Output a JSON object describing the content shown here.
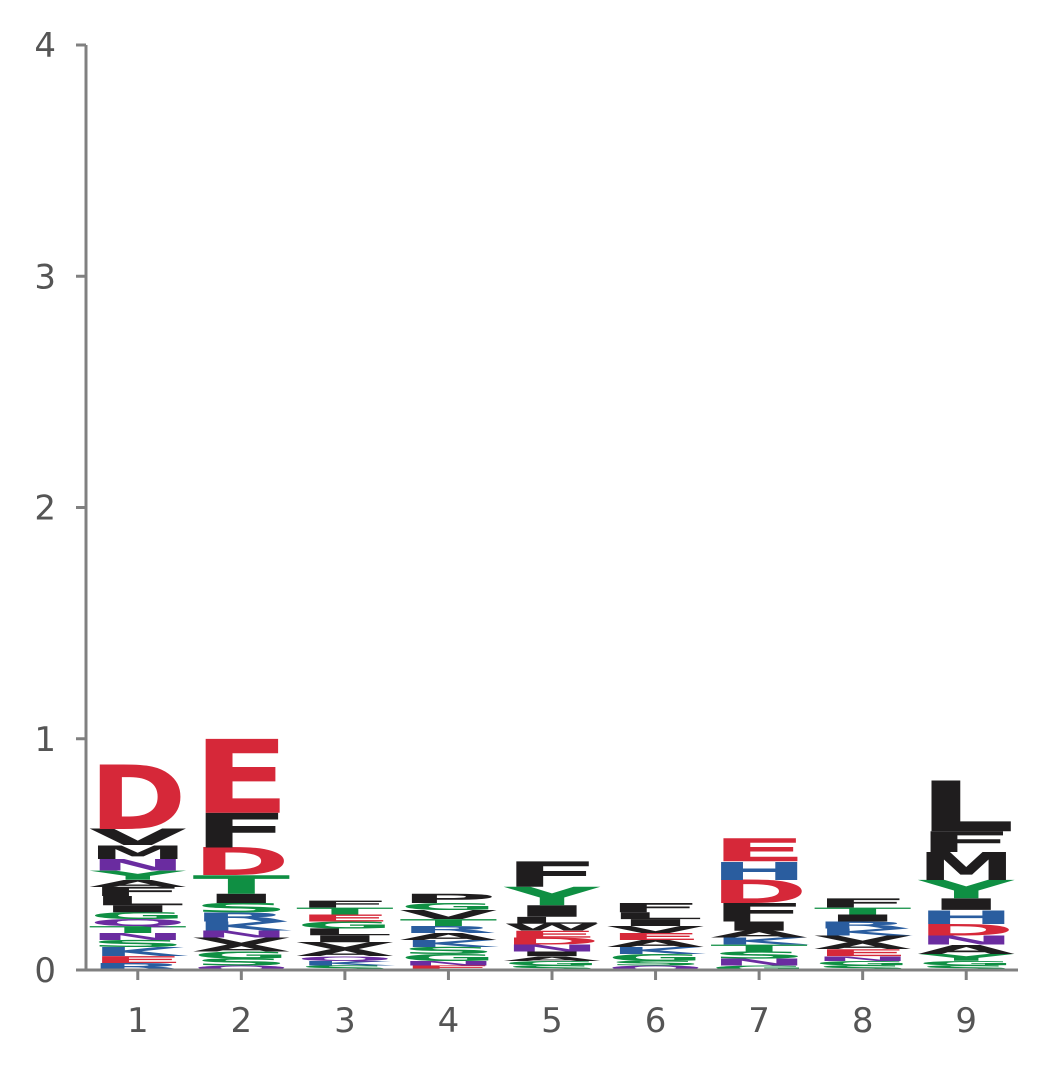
{
  "chart_data": {
    "type": "sequence-logo",
    "title": "",
    "xlabel": "",
    "ylabel": "",
    "ylim": [
      0,
      4
    ],
    "yticks": [
      "0",
      "1",
      "2",
      "3",
      "4"
    ],
    "categories": [
      "1",
      "2",
      "3",
      "4",
      "5",
      "6",
      "7",
      "8",
      "9"
    ],
    "grid": false,
    "colors": {
      "acidic": "#d62839",
      "basic": "#2a5d9f",
      "polar": "#0f8f43",
      "amide": "#6a2ca0",
      "hydrophobic": "#1f1d1e",
      "axis": "#808080"
    },
    "positions": [
      {
        "pos": "1",
        "letters": [
          {
            "aa": "R",
            "h": 0.03,
            "c": "basic"
          },
          {
            "aa": "E",
            "h": 0.03,
            "c": "acidic"
          },
          {
            "aa": "K",
            "h": 0.04,
            "c": "basic"
          },
          {
            "aa": "S",
            "h": 0.03,
            "c": "polar"
          },
          {
            "aa": "N",
            "h": 0.03,
            "c": "amide"
          },
          {
            "aa": "T",
            "h": 0.03,
            "c": "polar"
          },
          {
            "aa": "Q",
            "h": 0.03,
            "c": "amide"
          },
          {
            "aa": "G",
            "h": 0.03,
            "c": "polar"
          },
          {
            "aa": "I",
            "h": 0.03,
            "c": "hydrophobic"
          },
          {
            "aa": "L",
            "h": 0.04,
            "c": "hydrophobic"
          },
          {
            "aa": "F",
            "h": 0.04,
            "c": "hydrophobic"
          },
          {
            "aa": "A",
            "h": 0.03,
            "c": "hydrophobic"
          },
          {
            "aa": "Y",
            "h": 0.04,
            "c": "polar"
          },
          {
            "aa": "N",
            "h": 0.05,
            "c": "amide"
          },
          {
            "aa": "M",
            "h": 0.06,
            "c": "hydrophobic"
          },
          {
            "aa": "V",
            "h": 0.07,
            "c": "hydrophobic"
          },
          {
            "aa": "D",
            "h": 0.28,
            "c": "acidic"
          }
        ]
      },
      {
        "pos": "2",
        "letters": [
          {
            "aa": "Q",
            "h": 0.02,
            "c": "amide"
          },
          {
            "aa": "S",
            "h": 0.03,
            "c": "polar"
          },
          {
            "aa": "G",
            "h": 0.03,
            "c": "polar"
          },
          {
            "aa": "A",
            "h": 0.03,
            "c": "hydrophobic"
          },
          {
            "aa": "V",
            "h": 0.03,
            "c": "hydrophobic"
          },
          {
            "aa": "N",
            "h": 0.03,
            "c": "amide"
          },
          {
            "aa": "K",
            "h": 0.04,
            "c": "basic"
          },
          {
            "aa": "R",
            "h": 0.04,
            "c": "basic"
          },
          {
            "aa": "S",
            "h": 0.04,
            "c": "polar"
          },
          {
            "aa": "I",
            "h": 0.04,
            "c": "hydrophobic"
          },
          {
            "aa": "T",
            "h": 0.08,
            "c": "polar"
          },
          {
            "aa": "D",
            "h": 0.12,
            "c": "acidic"
          },
          {
            "aa": "F",
            "h": 0.15,
            "c": "hydrophobic"
          },
          {
            "aa": "E",
            "h": 0.32,
            "c": "acidic"
          }
        ]
      },
      {
        "pos": "3",
        "letters": [
          {
            "aa": "S",
            "h": 0.02,
            "c": "polar"
          },
          {
            "aa": "K",
            "h": 0.02,
            "c": "basic"
          },
          {
            "aa": "Q",
            "h": 0.02,
            "c": "amide"
          },
          {
            "aa": "A",
            "h": 0.03,
            "c": "hydrophobic"
          },
          {
            "aa": "V",
            "h": 0.03,
            "c": "hydrophobic"
          },
          {
            "aa": "I",
            "h": 0.03,
            "c": "hydrophobic"
          },
          {
            "aa": "L",
            "h": 0.03,
            "c": "hydrophobic"
          },
          {
            "aa": "G",
            "h": 0.03,
            "c": "polar"
          },
          {
            "aa": "E",
            "h": 0.03,
            "c": "acidic"
          },
          {
            "aa": "T",
            "h": 0.03,
            "c": "polar"
          },
          {
            "aa": "F",
            "h": 0.03,
            "c": "hydrophobic"
          }
        ]
      },
      {
        "pos": "4",
        "letters": [
          {
            "aa": "E",
            "h": 0.02,
            "c": "acidic"
          },
          {
            "aa": "N",
            "h": 0.02,
            "c": "amide"
          },
          {
            "aa": "G",
            "h": 0.03,
            "c": "polar"
          },
          {
            "aa": "S",
            "h": 0.03,
            "c": "polar"
          },
          {
            "aa": "K",
            "h": 0.03,
            "c": "basic"
          },
          {
            "aa": "A",
            "h": 0.03,
            "c": "hydrophobic"
          },
          {
            "aa": "R",
            "h": 0.03,
            "c": "basic"
          },
          {
            "aa": "T",
            "h": 0.03,
            "c": "polar"
          },
          {
            "aa": "V",
            "h": 0.04,
            "c": "hydrophobic"
          },
          {
            "aa": "G",
            "h": 0.03,
            "c": "polar"
          },
          {
            "aa": "P",
            "h": 0.04,
            "c": "hydrophobic"
          }
        ]
      },
      {
        "pos": "5",
        "letters": [
          {
            "aa": "S",
            "h": 0.02,
            "c": "polar"
          },
          {
            "aa": "G",
            "h": 0.02,
            "c": "polar"
          },
          {
            "aa": "A",
            "h": 0.02,
            "c": "hydrophobic"
          },
          {
            "aa": "I",
            "h": 0.02,
            "c": "hydrophobic"
          },
          {
            "aa": "N",
            "h": 0.03,
            "c": "amide"
          },
          {
            "aa": "D",
            "h": 0.03,
            "c": "acidic"
          },
          {
            "aa": "E",
            "h": 0.03,
            "c": "acidic"
          },
          {
            "aa": "W",
            "h": 0.03,
            "c": "hydrophobic"
          },
          {
            "aa": "L",
            "h": 0.03,
            "c": "hydrophobic"
          },
          {
            "aa": "I",
            "h": 0.05,
            "c": "hydrophobic"
          },
          {
            "aa": "Y",
            "h": 0.08,
            "c": "polar"
          },
          {
            "aa": "F",
            "h": 0.11,
            "c": "hydrophobic"
          }
        ]
      },
      {
        "pos": "6",
        "letters": [
          {
            "aa": "Q",
            "h": 0.02,
            "c": "amide"
          },
          {
            "aa": "S",
            "h": 0.02,
            "c": "polar"
          },
          {
            "aa": "G",
            "h": 0.03,
            "c": "polar"
          },
          {
            "aa": "K",
            "h": 0.03,
            "c": "basic"
          },
          {
            "aa": "A",
            "h": 0.03,
            "c": "hydrophobic"
          },
          {
            "aa": "E",
            "h": 0.03,
            "c": "acidic"
          },
          {
            "aa": "V",
            "h": 0.03,
            "c": "hydrophobic"
          },
          {
            "aa": "I",
            "h": 0.03,
            "c": "hydrophobic"
          },
          {
            "aa": "L",
            "h": 0.03,
            "c": "hydrophobic"
          },
          {
            "aa": "F",
            "h": 0.04,
            "c": "hydrophobic"
          }
        ]
      },
      {
        "pos": "7",
        "letters": [
          {
            "aa": "G",
            "h": 0.02,
            "c": "polar"
          },
          {
            "aa": "N",
            "h": 0.03,
            "c": "amide"
          },
          {
            "aa": "S",
            "h": 0.03,
            "c": "polar"
          },
          {
            "aa": "T",
            "h": 0.03,
            "c": "polar"
          },
          {
            "aa": "K",
            "h": 0.03,
            "c": "basic"
          },
          {
            "aa": "A",
            "h": 0.03,
            "c": "hydrophobic"
          },
          {
            "aa": "I",
            "h": 0.04,
            "c": "hydrophobic"
          },
          {
            "aa": "F",
            "h": 0.08,
            "c": "hydrophobic"
          },
          {
            "aa": "D",
            "h": 0.1,
            "c": "acidic"
          },
          {
            "aa": "H",
            "h": 0.08,
            "c": "basic"
          },
          {
            "aa": "E",
            "h": 0.1,
            "c": "acidic"
          }
        ]
      },
      {
        "pos": "8",
        "letters": [
          {
            "aa": "S",
            "h": 0.02,
            "c": "polar"
          },
          {
            "aa": "G",
            "h": 0.02,
            "c": "polar"
          },
          {
            "aa": "N",
            "h": 0.02,
            "c": "amide"
          },
          {
            "aa": "E",
            "h": 0.03,
            "c": "acidic"
          },
          {
            "aa": "A",
            "h": 0.03,
            "c": "hydrophobic"
          },
          {
            "aa": "V",
            "h": 0.03,
            "c": "hydrophobic"
          },
          {
            "aa": "K",
            "h": 0.03,
            "c": "basic"
          },
          {
            "aa": "R",
            "h": 0.03,
            "c": "basic"
          },
          {
            "aa": "I",
            "h": 0.03,
            "c": "hydrophobic"
          },
          {
            "aa": "T",
            "h": 0.03,
            "c": "polar"
          },
          {
            "aa": "F",
            "h": 0.04,
            "c": "hydrophobic"
          }
        ]
      },
      {
        "pos": "9",
        "letters": [
          {
            "aa": "S",
            "h": 0.02,
            "c": "polar"
          },
          {
            "aa": "G",
            "h": 0.02,
            "c": "polar"
          },
          {
            "aa": "Y",
            "h": 0.03,
            "c": "polar"
          },
          {
            "aa": "A",
            "h": 0.04,
            "c": "hydrophobic"
          },
          {
            "aa": "N",
            "h": 0.04,
            "c": "amide"
          },
          {
            "aa": "D",
            "h": 0.05,
            "c": "acidic"
          },
          {
            "aa": "H",
            "h": 0.06,
            "c": "basic"
          },
          {
            "aa": "I",
            "h": 0.05,
            "c": "hydrophobic"
          },
          {
            "aa": "Y",
            "h": 0.08,
            "c": "polar"
          },
          {
            "aa": "M",
            "h": 0.12,
            "c": "hydrophobic"
          },
          {
            "aa": "F",
            "h": 0.09,
            "c": "hydrophobic"
          },
          {
            "aa": "L",
            "h": 0.22,
            "c": "hydrophobic"
          }
        ]
      }
    ]
  }
}
